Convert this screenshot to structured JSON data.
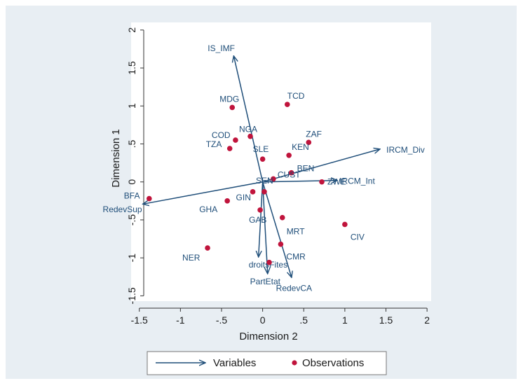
{
  "chart_data": {
    "type": "biplot",
    "title": "",
    "xlabel": "Dimension 2",
    "ylabel": "Dimension 1",
    "xlim": [
      -1.6,
      2.05
    ],
    "ylim": [
      -1.57,
      2.1
    ],
    "xticks": [
      -1.5,
      -1,
      -0.5,
      0,
      0.5,
      1,
      1.5,
      2
    ],
    "xtick_labels": [
      "-1.5",
      "-1",
      "-.5",
      "0",
      ".5",
      "1",
      "1.5",
      "2"
    ],
    "yticks": [
      -1.5,
      -1,
      -0.5,
      0,
      0.5,
      1,
      1.5,
      2
    ],
    "ytick_labels": [
      "-1.5",
      "-1",
      "-.5",
      "0",
      ".5",
      "1",
      "1.5",
      "2"
    ],
    "grid": false,
    "legend": {
      "position": "bottom",
      "items": [
        {
          "kind": "arrow",
          "label": "Variables"
        },
        {
          "kind": "marker",
          "label": "Observations"
        }
      ]
    },
    "colors": {
      "arrow": "#1f4e79",
      "marker": "#c0143c",
      "label": "#1f4e79",
      "outer_background": "#e8eef3",
      "plot_background": "#ffffff"
    },
    "variables": [
      {
        "label": "IS_IMF",
        "x": -0.35,
        "y": 1.65
      },
      {
        "label": "IRCM_Div",
        "x": 1.42,
        "y": 0.43
      },
      {
        "label": "IRCM_Int",
        "x": 0.9,
        "y": 0.02
      },
      {
        "label": "RedevSup",
        "x": -1.45,
        "y": -0.29
      },
      {
        "label": "droitsFites",
        "x": -0.05,
        "y": -0.98
      },
      {
        "label": "PartEtat",
        "x": 0.06,
        "y": -1.2
      },
      {
        "label": "RedevCA",
        "x": 0.35,
        "y": -1.25
      }
    ],
    "observations": [
      {
        "label": "MDG",
        "x": -0.37,
        "y": 0.98
      },
      {
        "label": "TCD",
        "x": 0.3,
        "y": 1.02
      },
      {
        "label": "NGA",
        "x": -0.15,
        "y": 0.6
      },
      {
        "label": "COD",
        "x": -0.33,
        "y": 0.55
      },
      {
        "label": "TZA",
        "x": -0.4,
        "y": 0.44
      },
      {
        "label": "ZAF",
        "x": 0.56,
        "y": 0.52
      },
      {
        "label": "KEN",
        "x": 0.32,
        "y": 0.35
      },
      {
        "label": "SLE",
        "x": 0.0,
        "y": 0.3
      },
      {
        "label": "BEN",
        "x": 0.35,
        "y": 0.12
      },
      {
        "label": "CUST",
        "x": 0.13,
        "y": 0.04
      },
      {
        "label": "ZWE",
        "x": 0.72,
        "y": 0.0
      },
      {
        "label": "BFA",
        "x": -1.38,
        "y": -0.22
      },
      {
        "label": "GIN",
        "x": -0.12,
        "y": -0.13
      },
      {
        "label": "GHA",
        "x": -0.43,
        "y": -0.25
      },
      {
        "label": "SEN",
        "x": 0.02,
        "y": -0.13
      },
      {
        "label": "GAB",
        "x": -0.03,
        "y": -0.37
      },
      {
        "label": "MRT",
        "x": 0.24,
        "y": -0.47
      },
      {
        "label": "CIV",
        "x": 1.0,
        "y": -0.56
      },
      {
        "label": "NER",
        "x": -0.67,
        "y": -0.87
      },
      {
        "label": "CMR",
        "x": 0.22,
        "y": -0.82
      },
      {
        "label": "",
        "x": 0.08,
        "y": -1.06
      }
    ]
  }
}
